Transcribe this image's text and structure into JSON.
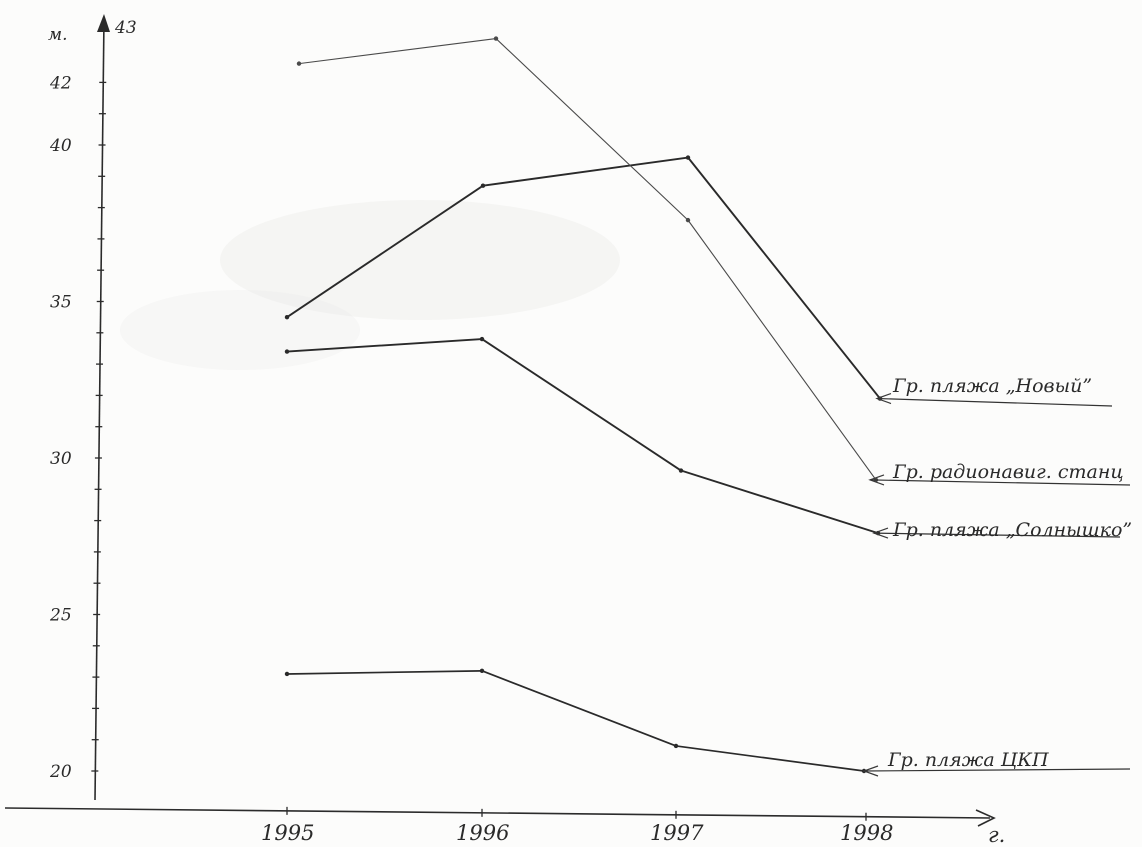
{
  "chart_data": {
    "type": "line",
    "x_unit_label": "г.",
    "y_unit_label": "м.",
    "y_top_label": "43",
    "ylim": [
      19.5,
      43
    ],
    "y_ticks": [
      "20",
      "25",
      "30",
      "35",
      "40",
      "42"
    ],
    "categories": [
      "1995",
      "1996",
      "1997",
      "1998"
    ],
    "grid": false,
    "legend": "inline-right",
    "series": [
      {
        "name": "Гр. пляжа „Новый”",
        "values": [
          34.5,
          38.7,
          39.6,
          31.9
        ],
        "color": "#2a2a2a"
      },
      {
        "name": "Гр. радионавиг. станц",
        "values": [
          42.6,
          43.4,
          37.6,
          29.3
        ],
        "color": "#4a4a4a"
      },
      {
        "name": "Гр. пляжа „Солнышко”",
        "values": [
          33.4,
          33.8,
          29.6,
          27.6
        ],
        "color": "#2a2a2a"
      },
      {
        "name": "Гр. пляжа ЦКП",
        "values": [
          23.1,
          23.2,
          20.8,
          20.0
        ],
        "color": "#2a2a2a"
      }
    ]
  }
}
